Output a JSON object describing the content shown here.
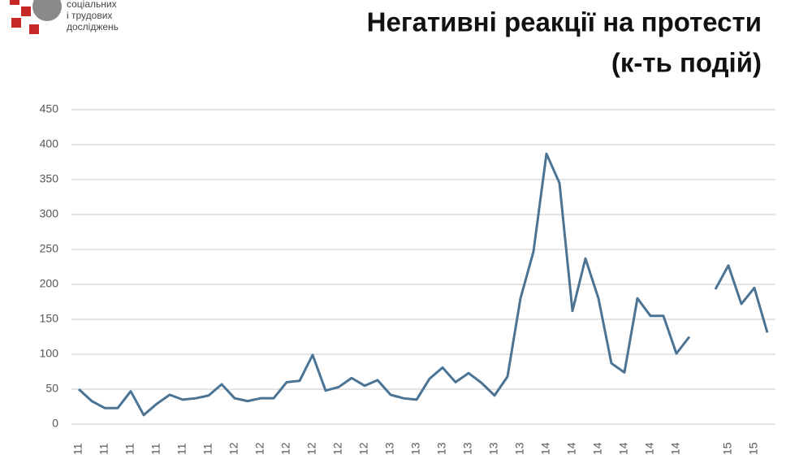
{
  "logo_lines": [
    "соціальних",
    "і трудових",
    "досліджень"
  ],
  "chart_data": {
    "type": "line",
    "title": "Негативні реакції на протести",
    "subtitle": "(к-ть подій)",
    "categories": [
      "11",
      null,
      "11",
      null,
      "11",
      null,
      "11",
      null,
      "11",
      null,
      "11",
      null,
      "12",
      null,
      "12",
      null,
      "12",
      null,
      "12",
      null,
      "12",
      null,
      "12",
      null,
      "13",
      null,
      "13",
      null,
      "13",
      null,
      "13",
      null,
      "13",
      null,
      "13",
      null,
      "14",
      null,
      "14",
      null,
      "14",
      null,
      "14",
      null,
      "14",
      null,
      "14",
      null,
      null,
      null,
      "15",
      null,
      "15",
      null
    ],
    "series": [
      {
        "name": "Негативні реакції",
        "color": "#4a7394",
        "values": [
          50,
          33,
          23,
          23,
          47,
          13,
          29,
          42,
          35,
          37,
          41,
          57,
          37,
          33,
          37,
          37,
          60,
          62,
          99,
          48,
          53,
          66,
          55,
          63,
          42,
          37,
          35,
          65,
          81,
          60,
          73,
          59,
          41,
          68,
          180,
          247,
          387,
          345,
          162,
          237,
          180,
          87,
          74,
          180,
          155,
          155,
          101,
          125,
          null,
          193,
          227,
          172,
          195,
          131
        ]
      }
    ],
    "ylim": [
      0,
      450
    ],
    "yticks": [
      0,
      50,
      100,
      150,
      200,
      250,
      300,
      350,
      400,
      450
    ],
    "grid": true
  }
}
